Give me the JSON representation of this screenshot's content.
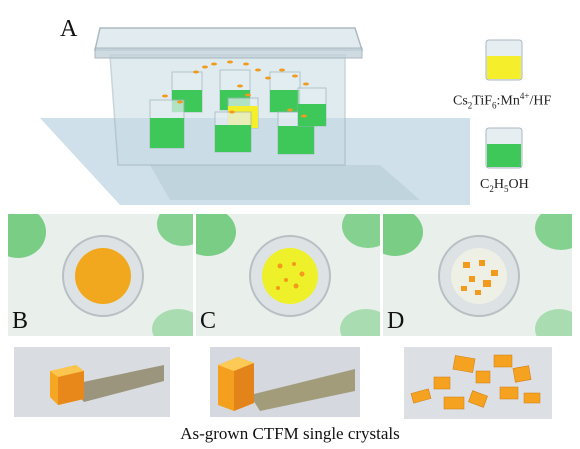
{
  "panels": {
    "a": {
      "letter": "A"
    },
    "b": {
      "letter": "B"
    },
    "c": {
      "letter": "C"
    },
    "d": {
      "letter": "D"
    }
  },
  "legend": {
    "solution_label_prefix": "Cs",
    "solution_label_sub1": "2",
    "solution_label_mid": "TiF",
    "solution_label_sub2": "6",
    "solution_label_dopant": ":Mn",
    "solution_label_sup": "4+",
    "solution_label_suffix": "/HF",
    "ethanol_label_prefix": "C",
    "ethanol_label_sub1": "2",
    "ethanol_label_mid": "H",
    "ethanol_label_sub2": "5",
    "ethanol_label_suffix": "OH"
  },
  "caption": "As-grown CTFM single crystals",
  "colors": {
    "ethanol_green": "#3ec85a",
    "solution_yellow": "#f4ef2a",
    "crystal_orange": "#f29a1c",
    "box_glass": "#c9dfe6"
  }
}
